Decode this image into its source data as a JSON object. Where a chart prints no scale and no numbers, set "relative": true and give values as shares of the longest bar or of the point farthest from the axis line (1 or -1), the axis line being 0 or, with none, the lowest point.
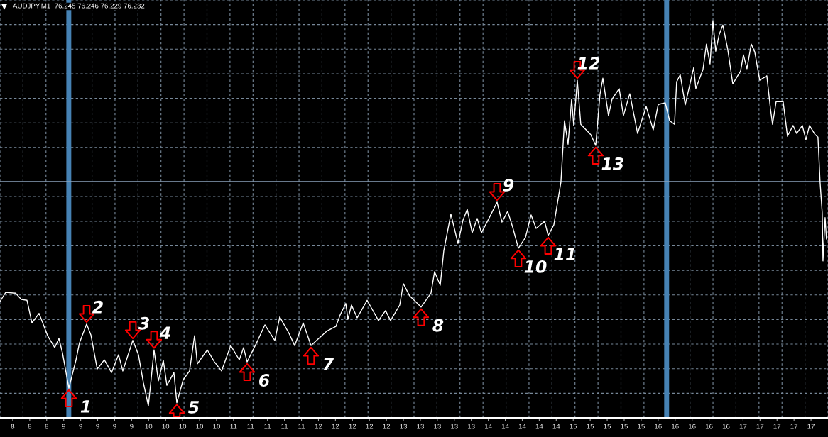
{
  "chart_data": {
    "type": "line",
    "title": "AUDJPY,M1  76.245 76.246 76.229 76.232",
    "relative": true,
    "x": [
      7.85,
      7.917,
      8.034,
      8.101,
      8.168,
      8.226,
      8.31,
      8.41,
      8.494,
      8.544,
      8.586,
      8.661,
      8.745,
      8.786,
      8.87,
      8.92,
      8.995,
      9.079,
      9.163,
      9.246,
      9.296,
      9.414,
      9.48,
      9.539,
      9.597,
      9.631,
      9.664,
      9.715,
      9.773,
      9.815,
      9.898,
      9.932,
      10.007,
      10.082,
      10.141,
      10.174,
      10.291,
      10.375,
      10.459,
      10.567,
      10.668,
      10.718,
      10.76,
      10.885,
      10.969,
      11.086,
      11.144,
      11.253,
      11.32,
      11.42,
      11.512,
      11.696,
      11.805,
      11.855,
      11.922,
      11.947,
      11.989,
      12.056,
      12.173,
      12.307,
      12.39,
      12.449,
      12.557,
      12.599,
      12.674,
      12.808,
      12.925,
      12.967,
      13.034,
      13.076,
      13.159,
      13.243,
      13.302,
      13.352,
      13.41,
      13.469,
      13.519,
      13.619,
      13.703,
      13.761,
      13.828,
      13.887,
      13.954,
      14.037,
      14.104,
      14.163,
      14.263,
      14.305,
      14.372,
      14.413,
      14.455,
      14.497,
      14.539,
      14.581,
      14.606,
      14.648,
      14.689,
      14.806,
      14.865,
      14.915,
      14.949,
      15.015,
      15.057,
      15.141,
      15.191,
      15.266,
      15.358,
      15.459,
      15.542,
      15.601,
      15.684,
      15.735,
      15.793,
      15.818,
      15.86,
      15.919,
      16.019,
      16.044,
      16.128,
      16.169,
      16.211,
      16.245,
      16.278,
      16.32,
      16.362,
      16.42,
      16.479,
      16.571,
      16.604,
      16.646,
      16.696,
      16.738,
      16.796,
      16.88,
      16.922,
      16.947,
      16.989,
      17.072,
      17.123,
      17.189,
      17.231,
      17.298,
      17.34,
      17.382,
      17.449,
      17.482,
      17.507,
      17.532,
      17.541,
      17.566,
      17.582
    ],
    "series": [
      {
        "color": "#ffffff",
        "values": [
          0.293,
          0.316,
          0.314,
          0.298,
          0.296,
          0.239,
          0.263,
          0.207,
          0.177,
          0.2,
          0.163,
          0.075,
          0.146,
          0.189,
          0.236,
          0.209,
          0.123,
          0.146,
          0.114,
          0.159,
          0.118,
          0.195,
          0.159,
          0.088,
          0.03,
          0.1,
          0.171,
          0.093,
          0.145,
          0.082,
          0.114,
          0.038,
          0.096,
          0.118,
          0.207,
          0.136,
          0.171,
          0.141,
          0.118,
          0.182,
          0.146,
          0.177,
          0.141,
          0.195,
          0.234,
          0.195,
          0.254,
          0.213,
          0.182,
          0.239,
          0.182,
          0.218,
          0.23,
          0.259,
          0.288,
          0.248,
          0.284,
          0.252,
          0.296,
          0.245,
          0.27,
          0.245,
          0.284,
          0.338,
          0.307,
          0.279,
          0.314,
          0.368,
          0.334,
          0.421,
          0.513,
          0.439,
          0.498,
          0.525,
          0.466,
          0.502,
          0.466,
          0.507,
          0.543,
          0.493,
          0.52,
          0.48,
          0.427,
          0.454,
          0.511,
          0.477,
          0.495,
          0.459,
          0.486,
          0.539,
          0.593,
          0.748,
          0.689,
          0.802,
          0.736,
          0.85,
          0.739,
          0.713,
          0.686,
          0.814,
          0.855,
          0.761,
          0.802,
          0.829,
          0.761,
          0.816,
          0.716,
          0.784,
          0.725,
          0.789,
          0.793,
          0.748,
          0.739,
          0.846,
          0.864,
          0.788,
          0.882,
          0.829,
          0.877,
          0.941,
          0.891,
          1,
          0.923,
          0.966,
          0.989,
          0.927,
          0.841,
          0.873,
          0.914,
          0.879,
          0.941,
          0.921,
          0.85,
          0.861,
          0.779,
          0.739,
          0.796,
          0.796,
          0.709,
          0.736,
          0.716,
          0.736,
          0.7,
          0.736,
          0.713,
          0.707,
          0.593,
          0.516,
          0.395,
          0.504,
          0.45
        ]
      }
    ],
    "xlim": [
      7.85,
      17.6
    ],
    "xticks": [
      {
        "value": 8,
        "label": "8"
      },
      {
        "value": 8.2,
        "label": "8"
      },
      {
        "value": 8.4,
        "label": "8"
      },
      {
        "value": 8.6,
        "label": "9"
      },
      {
        "value": 8.8,
        "label": "9"
      },
      {
        "value": 9,
        "label": "9"
      },
      {
        "value": 9.2,
        "label": "9"
      },
      {
        "value": 9.4,
        "label": "9"
      },
      {
        "value": 9.6,
        "label": "10"
      },
      {
        "value": 9.8,
        "label": "10"
      },
      {
        "value": 10,
        "label": "10"
      },
      {
        "value": 10.2,
        "label": "10"
      },
      {
        "value": 10.4,
        "label": "10"
      },
      {
        "value": 10.6,
        "label": "11"
      },
      {
        "value": 10.8,
        "label": "11"
      },
      {
        "value": 11,
        "label": "11"
      },
      {
        "value": 11.2,
        "label": "11"
      },
      {
        "value": 11.4,
        "label": "11"
      },
      {
        "value": 11.6,
        "label": "12"
      },
      {
        "value": 11.8,
        "label": "12"
      },
      {
        "value": 12,
        "label": "12"
      },
      {
        "value": 12.2,
        "label": "12"
      },
      {
        "value": 12.4,
        "label": "12"
      },
      {
        "value": 12.6,
        "label": "13"
      },
      {
        "value": 12.8,
        "label": "13"
      },
      {
        "value": 13,
        "label": "13"
      },
      {
        "value": 13.2,
        "label": "13"
      },
      {
        "value": 13.4,
        "label": "13"
      },
      {
        "value": 13.6,
        "label": "14"
      },
      {
        "value": 13.8,
        "label": "14"
      },
      {
        "value": 14,
        "label": "14"
      },
      {
        "value": 14.2,
        "label": "14"
      },
      {
        "value": 14.4,
        "label": "14"
      },
      {
        "value": 14.6,
        "label": "15"
      },
      {
        "value": 14.8,
        "label": "15"
      },
      {
        "value": 15,
        "label": "15"
      },
      {
        "value": 15.2,
        "label": "15"
      },
      {
        "value": 15.4,
        "label": "15"
      },
      {
        "value": 15.6,
        "label": "16"
      },
      {
        "value": 15.8,
        "label": "16"
      },
      {
        "value": 16,
        "label": "16"
      },
      {
        "value": 16.2,
        "label": "16"
      },
      {
        "value": 16.4,
        "label": "16"
      },
      {
        "value": 16.6,
        "label": "17"
      },
      {
        "value": 16.8,
        "label": "17"
      },
      {
        "value": 17,
        "label": "17"
      },
      {
        "value": 17.2,
        "label": "17"
      },
      {
        "value": 17.4,
        "label": "17"
      }
    ],
    "tick_labels": "x",
    "grid": true,
    "ref_lines": [
      {
        "axis": "x",
        "value": 8.66,
        "color": "#4682b4"
      },
      {
        "axis": "x",
        "value": 15.7,
        "color": "#4682b4"
      },
      {
        "axis": "y",
        "value": 0.595,
        "color": "#8ba2bb"
      }
    ],
    "annotations": [
      {
        "text": "1",
        "x": 8.661,
        "y": 0.075
      },
      {
        "text": "2",
        "x": 8.87,
        "y": 0.236
      },
      {
        "text": "3",
        "x": 9.414,
        "y": 0.195
      },
      {
        "text": "4",
        "x": 9.664,
        "y": 0.171
      },
      {
        "text": "5",
        "x": 9.932,
        "y": 0.038
      },
      {
        "text": "6",
        "x": 10.76,
        "y": 0.141
      },
      {
        "text": "7",
        "x": 11.512,
        "y": 0.182
      },
      {
        "text": "8",
        "x": 12.808,
        "y": 0.279
      },
      {
        "text": "9",
        "x": 13.703,
        "y": 0.543
      },
      {
        "text": "10",
        "x": 13.954,
        "y": 0.427
      },
      {
        "text": "11",
        "x": 14.305,
        "y": 0.459
      },
      {
        "text": "12",
        "x": 14.648,
        "y": 0.85
      },
      {
        "text": "13",
        "x": 14.865,
        "y": 0.686
      }
    ]
  }
}
